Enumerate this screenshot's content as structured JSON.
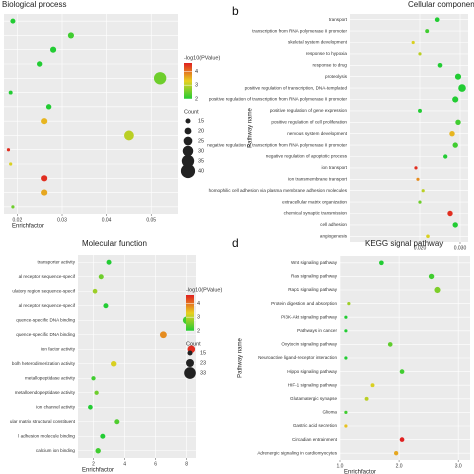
{
  "chart_data": [
    {
      "type": "scatter",
      "title": "Biological process",
      "xlabel": "Enrichfactor",
      "categories": [
        null,
        null,
        null,
        null,
        null,
        null,
        null,
        null,
        null,
        null,
        null,
        null,
        null,
        null
      ],
      "x": [
        0.019,
        0.032,
        0.028,
        0.025,
        0.052,
        0.0185,
        0.027,
        0.026,
        0.045,
        0.018,
        0.0185,
        0.026,
        0.026,
        0.019
      ],
      "sizes": [
        15,
        18,
        18,
        16,
        35,
        12,
        16,
        18,
        28,
        10,
        10,
        18,
        18,
        10
      ],
      "colors": [
        2,
        2.2,
        2,
        2,
        2.5,
        2,
        2,
        3.5,
        3,
        4.5,
        3.2,
        4.5,
        3.6,
        2.5
      ],
      "xlim": [
        0.017,
        0.056
      ],
      "xticks": [
        0.02,
        0.03,
        0.04,
        0.05
      ],
      "color_legend": {
        "title": "-log10(PValue)",
        "ticks": [
          4,
          3,
          2
        ]
      },
      "size_legend": {
        "title": "Count",
        "ticks": [
          15,
          20,
          25,
          30,
          35,
          40
        ]
      }
    },
    {
      "type": "scatter",
      "title": "Cellular component",
      "panel": "b",
      "ylabel": "Pathway name",
      "categories": [
        "transport",
        "transcription from RNA polymerase II promoter",
        "skeletal system development",
        "response to hypoxia",
        "response to drug",
        "proteolysis",
        "positive regulation of transcription, DNA-templated",
        "positive regulation of transcription from RNA polymerase II promoter",
        "positive regulation of gene expression",
        "positive regulation of cell proliferation",
        "nervous system development",
        "negative regulation of transcription from RNA polymerase II promoter",
        "negative regulation of apoptotic process",
        "ion transport",
        "ion transmembrane transport",
        "homophilic cell adhesion via plasma membrane adhesion molecules",
        "extracellular matrix organization",
        "chemical synaptic transmission",
        "cell adhesion",
        "angiogenesis"
      ],
      "x": [
        0.0243,
        0.0218,
        0.0183,
        0.02,
        0.025,
        0.0295,
        0.0305,
        0.0288,
        0.02,
        0.0295,
        0.028,
        0.0288,
        0.0263,
        0.019,
        0.0195,
        0.0208,
        0.02,
        0.0275,
        0.0288,
        0.022
      ],
      "sizes": [
        14,
        12,
        10,
        10,
        14,
        18,
        22,
        18,
        12,
        16,
        16,
        16,
        13,
        10,
        10,
        10,
        10,
        16,
        16,
        11
      ],
      "colors": [
        2,
        2.2,
        3.2,
        3,
        2,
        2,
        2,
        2,
        2,
        2.2,
        3.5,
        2.2,
        2,
        4.5,
        3.8,
        3,
        2.5,
        4.5,
        2,
        3.2
      ],
      "xlim": [
        0.0025,
        0.032
      ],
      "xticks": [
        {
          "value": 0.02,
          "label": "0.020"
        },
        {
          "value": 0.03,
          "label": "0.030"
        }
      ]
    },
    {
      "type": "scatter",
      "title": "Molecular function",
      "xlabel": "Enrichfactor",
      "categories": [
        "transporter activity",
        "al receptor sequence-specif",
        "ulatory region sequence-specif",
        "al receptor sequence-specif",
        "quence-specific DNA binding",
        "quence-specific DNA binding",
        "ion factor activity",
        "bolh heterodimerization activity",
        "metallopeptidase activity",
        "metalloendopeptidase activity",
        "ion channel activity",
        "ular matrix structural constituent",
        "l adhesion molecule binding",
        "calcium ion binding"
      ],
      "x": [
        3.0,
        2.5,
        2.1,
        2.8,
        8.0,
        6.5,
        8.3,
        3.3,
        2.0,
        2.2,
        1.8,
        3.5,
        2.6,
        2.3
      ],
      "sizes": [
        15,
        15,
        14,
        15,
        22,
        20,
        22,
        16,
        13,
        13,
        14,
        15,
        15,
        16
      ],
      "colors": [
        2,
        2.5,
        2.8,
        2,
        2.2,
        3.8,
        4.5,
        3.2,
        2.2,
        2.5,
        2,
        2.3,
        2,
        2.2
      ],
      "xlim": [
        1,
        8.6
      ],
      "xticks": [
        2,
        4,
        6,
        8
      ],
      "color_legend": {
        "title": "-log10(PValue)",
        "ticks": [
          4,
          3,
          2
        ]
      },
      "size_legend": {
        "title": "Count",
        "ticks": [
          15,
          23,
          33
        ]
      }
    },
    {
      "type": "scatter",
      "title": "KEGG signal pathway",
      "panel": "d",
      "xlabel": "Enrichfactor",
      "ylabel": "Pathway name",
      "categories": [
        "Wnt signaling pathway",
        "Ras signaling pathway",
        "Rap1 signaling pathway",
        "Protein digestion and absorption",
        "PI3K-Akt signaling pathway",
        "Pathways in cancer",
        "Oxytocin signaling pathway",
        "Neuroactive ligand-receptor interaction",
        "Hippo signaling pathway",
        "HIF-1 signaling pathway",
        "Glutamatergic synapse",
        "Glioma",
        "Gastric acid secretion",
        "Circadian entrainment",
        "Adrenergic signaling in cardiomyocytes"
      ],
      "x": [
        1.7,
        2.55,
        2.65,
        1.15,
        1.1,
        1.1,
        1.85,
        1.1,
        2.05,
        1.55,
        1.45,
        1.1,
        1.1,
        2.05,
        1.95
      ],
      "sizes": [
        14,
        16,
        18,
        10,
        10,
        10,
        14,
        10,
        14,
        12,
        12,
        10,
        10,
        14,
        13
      ],
      "colors": [
        2,
        2.2,
        2.6,
        2.8,
        2,
        2,
        2.4,
        2,
        2.2,
        3.2,
        3,
        2.2,
        3.4,
        4.6,
        3.6
      ],
      "xlim": [
        1,
        3.2
      ],
      "xticks": [
        {
          "value": 1,
          "label": "1.0"
        },
        {
          "value": 2,
          "label": "2.0"
        },
        {
          "value": 3,
          "label": "3.0"
        }
      ]
    }
  ]
}
